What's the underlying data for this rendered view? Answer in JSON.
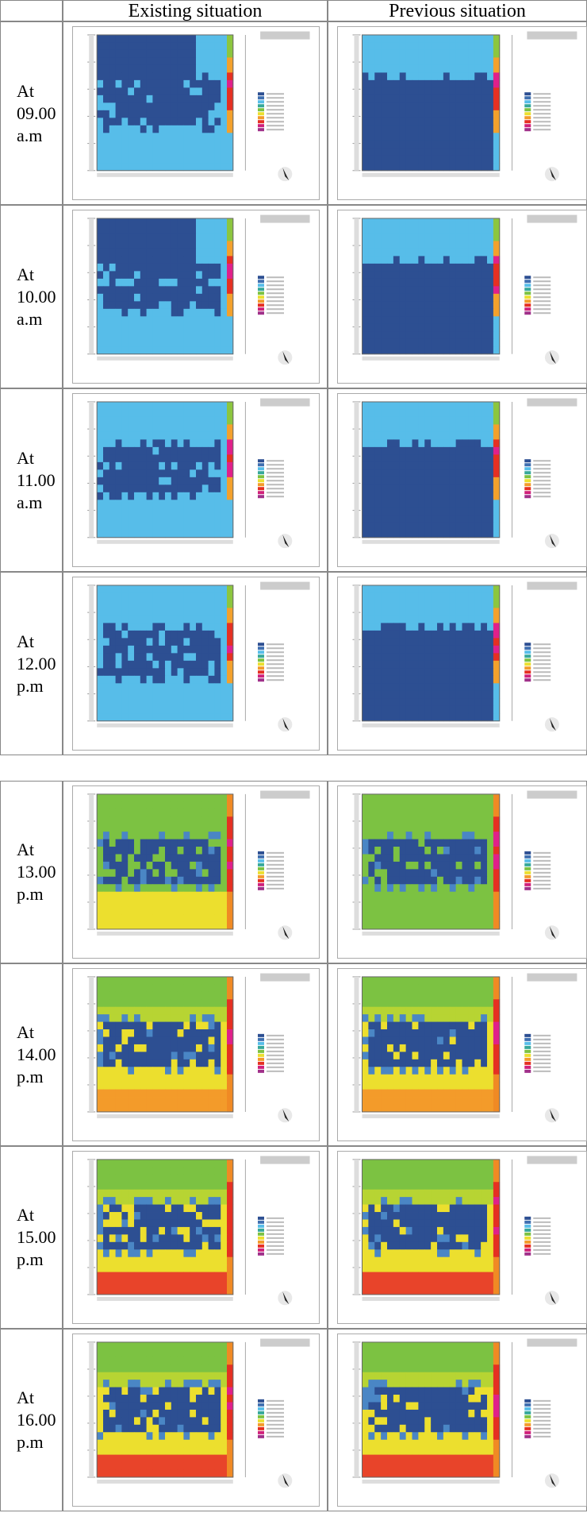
{
  "header": {
    "existing": "Existing situation",
    "previous": "Previous situation"
  },
  "rows": [
    {
      "label": [
        "At",
        "09.00",
        "a.m"
      ]
    },
    {
      "label": [
        "At",
        "10.00",
        "a.m"
      ]
    },
    {
      "label": [
        "At",
        "11.00",
        "a.m"
      ]
    },
    {
      "label": [
        "At",
        "12.00",
        "p.m"
      ]
    },
    {
      "label": [
        "At",
        "13.00",
        "p.m"
      ]
    },
    {
      "label": [
        "At",
        "14.00",
        "p.m"
      ]
    },
    {
      "label": [
        "At",
        "15.00",
        "p.m"
      ]
    },
    {
      "label": [
        "At",
        "16.00",
        "p.m"
      ]
    }
  ]
}
